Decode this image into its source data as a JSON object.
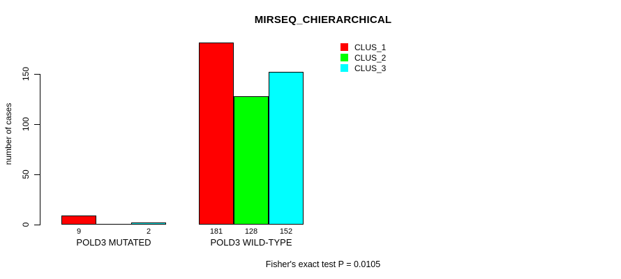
{
  "chart_data": {
    "type": "bar",
    "title": "MIRSEQ_CHIERARCHICAL",
    "ylabel": "number of cases",
    "xlabel": "",
    "yticks": [
      0,
      50,
      100,
      150
    ],
    "ylim": [
      0,
      181
    ],
    "grid": false,
    "legend_position": "top-right",
    "categories": [
      "POLD3 MUTATED",
      "POLD3 WILD-TYPE"
    ],
    "series": [
      {
        "name": "CLUS_1",
        "color": "#ff0000",
        "values": [
          9,
          181
        ]
      },
      {
        "name": "CLUS_2",
        "color": "#00ff00",
        "values": [
          0,
          128
        ]
      },
      {
        "name": "CLUS_3",
        "color": "#00ffff",
        "values": [
          2,
          152
        ]
      }
    ],
    "bar_labels": [
      [
        "9",
        "",
        "2"
      ],
      [
        "181",
        "128",
        "152"
      ]
    ],
    "annotation": "Fisher's exact test P = 0.0105"
  },
  "colors": {
    "clus_1": "#ff0000",
    "clus_2": "#00ff00",
    "clus_3": "#00ffff",
    "axis": "#000000",
    "background": "#ffffff"
  }
}
